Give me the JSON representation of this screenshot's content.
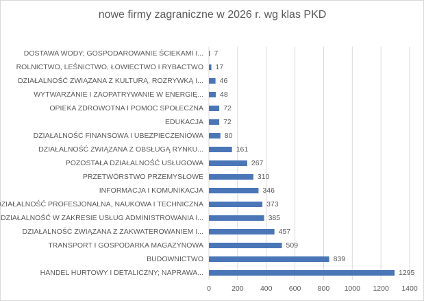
{
  "chart_data": {
    "type": "hbar",
    "title": "nowe firmy zagraniczne w 2026 r. wg klas PKD",
    "categories": [
      "DOSTAWA WODY; GOSPODAROWANIE ŚCIEKAMI I...",
      "ROLNICTWO, LEŚNICTWO, ŁOWIECTWO I RYBACTWO",
      "DZIAŁALNOŚĆ ZWIĄZANA Z KULTURĄ, ROZRYWKĄ I...",
      "WYTWARZANIE I ZAOPATRYWANIE W ENERGIĘ...",
      "OPIEKA ZDROWOTNA I POMOC SPOŁECZNA",
      "EDUKACJA",
      "DZIAŁALNOŚĆ FINANSOWA I UBEZPIECZENIOWA",
      "DZIAŁALNOŚĆ ZWIĄZANA Z OBSŁUGĄ RYNKU...",
      "POZOSTAŁA DZIAŁALNOŚĆ USŁUGOWA",
      "PRZETWÓRSTWO PRZEMYSŁOWE",
      "INFORMACJA I KOMUNIKACJA",
      "DZIAŁALNOŚĆ PROFESJONALNA, NAUKOWA I TECHNICZNA",
      "DZIAŁALNOŚĆ W ZAKRESIE USŁUG ADMINISTROWANIA I...",
      "DZIAŁALNOŚĆ ZWIĄZANA Z ZAKWATEROWANIEM I...",
      "TRANSPORT I GOSPODARKA MAGAZYNOWA",
      "BUDOWNICTWO",
      "HANDEL HURTOWY I DETALICZNY; NAPRAWA..."
    ],
    "values": [
      7,
      17,
      46,
      48,
      72,
      72,
      80,
      161,
      267,
      310,
      346,
      373,
      385,
      457,
      509,
      839,
      1295
    ],
    "color": "#4a76b8",
    "xlim": [
      0,
      1400
    ],
    "xticks": [
      0,
      200,
      400,
      600,
      800,
      1000,
      1200,
      1400
    ],
    "grid": true
  }
}
